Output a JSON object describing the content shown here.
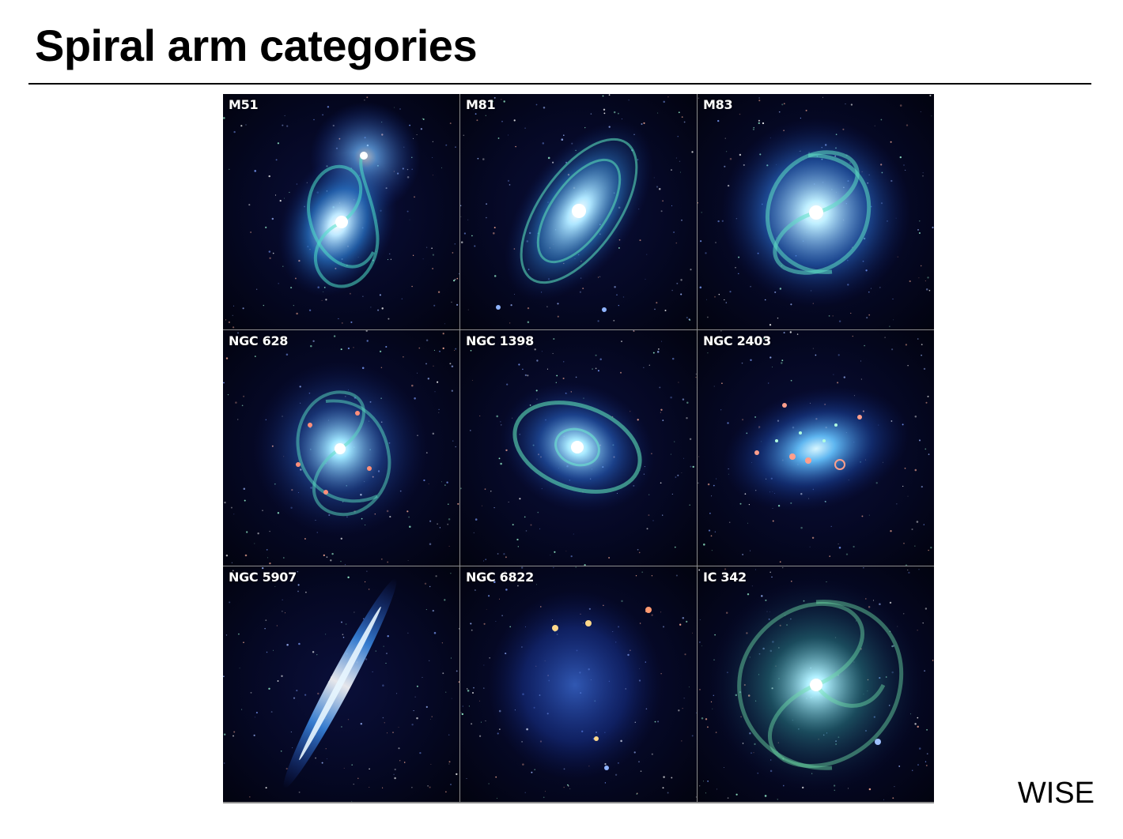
{
  "slide": {
    "title": "Spiral arm categories",
    "credit": "WISE"
  },
  "panels": [
    {
      "label": "M51",
      "icon": "spiral-galaxy-icon"
    },
    {
      "label": "M81",
      "icon": "spiral-galaxy-icon"
    },
    {
      "label": "M83",
      "icon": "spiral-galaxy-icon"
    },
    {
      "label": "NGC 628",
      "icon": "spiral-galaxy-icon"
    },
    {
      "label": "NGC 1398",
      "icon": "spiral-galaxy-icon"
    },
    {
      "label": "NGC 2403",
      "icon": "spiral-galaxy-icon"
    },
    {
      "label": "NGC 5907",
      "icon": "edge-on-galaxy-icon"
    },
    {
      "label": "NGC 6822",
      "icon": "irregular-galaxy-icon"
    },
    {
      "label": "IC 342",
      "icon": "spiral-galaxy-icon"
    }
  ]
}
